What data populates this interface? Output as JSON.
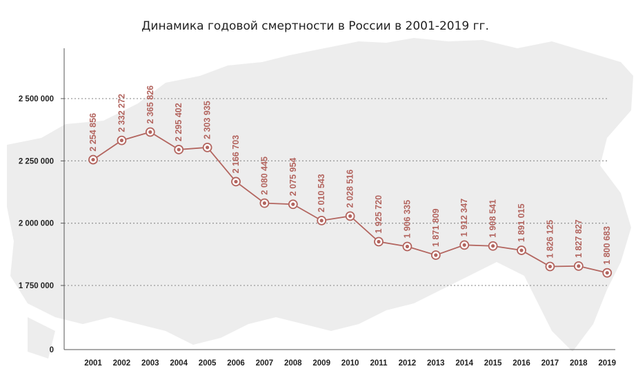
{
  "chart_data": {
    "type": "line",
    "title": "Динамика годовой смертности в России в 2001-2019 гг.",
    "xlabel": "",
    "ylabel": "",
    "categories": [
      "2001",
      "2002",
      "2003",
      "2004",
      "2005",
      "2006",
      "2007",
      "2008",
      "2009",
      "2010",
      "2011",
      "2012",
      "2013",
      "2014",
      "2015",
      "2016",
      "2017",
      "2018",
      "2019"
    ],
    "values": [
      2254856,
      2332272,
      2365826,
      2295402,
      2303935,
      2166703,
      2080445,
      2075954,
      2010543,
      2028516,
      1925720,
      1906335,
      1871809,
      1912347,
      1908541,
      1891015,
      1826125,
      1827827,
      1800683
    ],
    "data_labels": [
      "2 254 856",
      "2 332 272",
      "2 365 826",
      "2 295 402",
      "2 303 935",
      "2 166 703",
      "2 080 445",
      "2 075 954",
      "2 010 543",
      "2 028 516",
      "1 925 720",
      "1 906 335",
      "1 871 809",
      "1 912 347",
      "1 908 541",
      "1 891 015",
      "1 826 125",
      "1 827 827",
      "1 800 683"
    ],
    "y_ticks": [
      {
        "value": 0,
        "label": "0"
      },
      {
        "value": 1750000,
        "label": "1 750 000"
      },
      {
        "value": 2000000,
        "label": "2 000 000"
      },
      {
        "value": 2250000,
        "label": "2 250 000"
      },
      {
        "value": 2500000,
        "label": "2 500 000"
      }
    ],
    "y_axis_note": "broken axis: gap between 0 and 1 750 000",
    "grid": "dotted horizontal lines at 1 750 000, 2 000 000, 2 250 000, 2 500 000",
    "legend": "none",
    "colors": {
      "line": "#b3655f",
      "marker_fill": "#ffffff",
      "marker_center": "#b3655f",
      "data_label": "#b3655f",
      "grid": "#999999",
      "axis": "#555555",
      "background_map": "#ebebeb"
    }
  }
}
